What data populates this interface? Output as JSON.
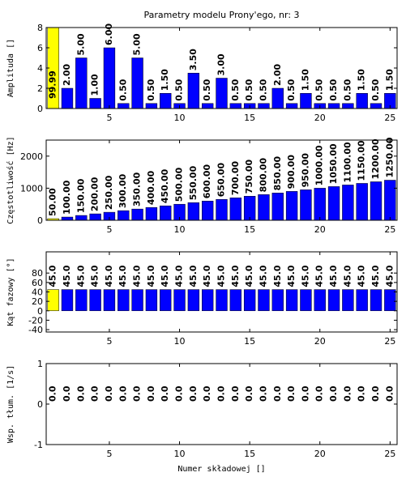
{
  "chart_data": [
    {
      "type": "bar",
      "title": "Parametry modelu Prony'ego, nr: 3",
      "ylabel": "Amplituda []",
      "x": [
        1,
        2,
        3,
        4,
        5,
        6,
        7,
        8,
        9,
        10,
        11,
        12,
        13,
        14,
        15,
        16,
        17,
        18,
        19,
        20,
        21,
        22,
        23,
        24,
        25
      ],
      "values": [
        99.99,
        2,
        5,
        1,
        6,
        0.5,
        5,
        0.5,
        1.5,
        0.5,
        3.5,
        0.5,
        3,
        0.5,
        0.5,
        0.5,
        2,
        0.5,
        1.5,
        0.5,
        0.5,
        0.5,
        1.5,
        0.5,
        1.5
      ],
      "value_labels": [
        "99.99",
        "2.00",
        "5.00",
        "1.00",
        "6.00",
        "0.50",
        "5.00",
        "0.50",
        "1.50",
        "0.50",
        "3.50",
        "0.50",
        "3.00",
        "0.50",
        "0.50",
        "0.50",
        "2.00",
        "0.50",
        "1.50",
        "0.50",
        "0.50",
        "0.50",
        "1.50",
        "0.50",
        "1.50"
      ],
      "colors": [
        "#ffff00",
        "#0000ff",
        "#0000ff",
        "#0000ff",
        "#0000ff",
        "#0000ff",
        "#0000ff",
        "#0000ff",
        "#0000ff",
        "#0000ff",
        "#0000ff",
        "#0000ff",
        "#0000ff",
        "#0000ff",
        "#0000ff",
        "#0000ff",
        "#0000ff",
        "#0000ff",
        "#0000ff",
        "#0000ff",
        "#0000ff",
        "#0000ff",
        "#0000ff",
        "#0000ff",
        "#0000ff"
      ],
      "xlim": [
        0.5,
        25.5
      ],
      "xticks": [
        5,
        10,
        15,
        20,
        25
      ],
      "ylim": [
        0,
        8
      ],
      "yticks": [
        0,
        2,
        4,
        6,
        8
      ]
    },
    {
      "type": "bar",
      "ylabel": "Częstotliwość [Hz]",
      "x": [
        1,
        2,
        3,
        4,
        5,
        6,
        7,
        8,
        9,
        10,
        11,
        12,
        13,
        14,
        15,
        16,
        17,
        18,
        19,
        20,
        21,
        22,
        23,
        24,
        25
      ],
      "values": [
        50,
        100,
        150,
        200,
        250,
        300,
        350,
        400,
        450,
        500,
        550,
        600,
        650,
        700,
        750,
        800,
        850,
        900,
        950,
        1000,
        1050,
        1100,
        1150,
        1200,
        1250
      ],
      "value_labels": [
        "50.00",
        "100.00",
        "150.00",
        "200.00",
        "250.00",
        "300.00",
        "350.00",
        "400.00",
        "450.00",
        "500.00",
        "550.00",
        "600.00",
        "650.00",
        "700.00",
        "750.00",
        "800.00",
        "850.00",
        "900.00",
        "950.00",
        "1000.00",
        "1050.00",
        "1100.00",
        "1150.00",
        "1200.00",
        "1250.00"
      ],
      "colors": [
        "#ffff00",
        "#0000ff",
        "#0000ff",
        "#0000ff",
        "#0000ff",
        "#0000ff",
        "#0000ff",
        "#0000ff",
        "#0000ff",
        "#0000ff",
        "#0000ff",
        "#0000ff",
        "#0000ff",
        "#0000ff",
        "#0000ff",
        "#0000ff",
        "#0000ff",
        "#0000ff",
        "#0000ff",
        "#0000ff",
        "#0000ff",
        "#0000ff",
        "#0000ff",
        "#0000ff",
        "#0000ff"
      ],
      "xlim": [
        0.5,
        25.5
      ],
      "xticks": [
        5,
        10,
        15,
        20,
        25
      ],
      "ylim": [
        0,
        2500
      ],
      "yticks": [
        0,
        1000,
        2000
      ]
    },
    {
      "type": "bar",
      "ylabel": "Kąt fazowy [°]",
      "x": [
        1,
        2,
        3,
        4,
        5,
        6,
        7,
        8,
        9,
        10,
        11,
        12,
        13,
        14,
        15,
        16,
        17,
        18,
        19,
        20,
        21,
        22,
        23,
        24,
        25
      ],
      "values": [
        45,
        45,
        45,
        45,
        45,
        45,
        45,
        45,
        45,
        45,
        45,
        45,
        45,
        45,
        45,
        45,
        45,
        45,
        45,
        45,
        45,
        45,
        45,
        45,
        45
      ],
      "value_labels": [
        "45.0",
        "45.0",
        "45.0",
        "45.0",
        "45.0",
        "45.0",
        "45.0",
        "45.0",
        "45.0",
        "45.0",
        "45.0",
        "45.0",
        "45.0",
        "45.0",
        "45.0",
        "45.0",
        "45.0",
        "45.0",
        "45.0",
        "45.0",
        "45.0",
        "45.0",
        "45.0",
        "45.0",
        "45.0"
      ],
      "colors": [
        "#ffff00",
        "#0000ff",
        "#0000ff",
        "#0000ff",
        "#0000ff",
        "#0000ff",
        "#0000ff",
        "#0000ff",
        "#0000ff",
        "#0000ff",
        "#0000ff",
        "#0000ff",
        "#0000ff",
        "#0000ff",
        "#0000ff",
        "#0000ff",
        "#0000ff",
        "#0000ff",
        "#0000ff",
        "#0000ff",
        "#0000ff",
        "#0000ff",
        "#0000ff",
        "#0000ff",
        "#0000ff"
      ],
      "xlim": [
        0.5,
        25.5
      ],
      "xticks": [
        5,
        10,
        15,
        20,
        25
      ],
      "ylim": [
        -45,
        125
      ],
      "yticks": [
        -40,
        -20,
        0,
        20,
        40,
        60,
        80
      ]
    },
    {
      "type": "bar",
      "ylabel": "Wsp. tłum. [1/s]",
      "xlabel": "Numer składowej []",
      "x": [
        1,
        2,
        3,
        4,
        5,
        6,
        7,
        8,
        9,
        10,
        11,
        12,
        13,
        14,
        15,
        16,
        17,
        18,
        19,
        20,
        21,
        22,
        23,
        24,
        25
      ],
      "values": [
        0,
        0,
        0,
        0,
        0,
        0,
        0,
        0,
        0,
        0,
        0,
        0,
        0,
        0,
        0,
        0,
        0,
        0,
        0,
        0,
        0,
        0,
        0,
        0,
        0
      ],
      "value_labels": [
        "0.0",
        "0.0",
        "0.0",
        "0.0",
        "0.0",
        "0.0",
        "0.0",
        "0.0",
        "0.0",
        "0.0",
        "0.0",
        "0.0",
        "0.0",
        "0.0",
        "0.0",
        "0.0",
        "0.0",
        "0.0",
        "0.0",
        "0.0",
        "0.0",
        "0.0",
        "0.0",
        "0.0",
        "0.0"
      ],
      "colors": [
        "#ffff00",
        "#0000ff",
        "#0000ff",
        "#0000ff",
        "#0000ff",
        "#0000ff",
        "#0000ff",
        "#0000ff",
        "#0000ff",
        "#0000ff",
        "#0000ff",
        "#0000ff",
        "#0000ff",
        "#0000ff",
        "#0000ff",
        "#0000ff",
        "#0000ff",
        "#0000ff",
        "#0000ff",
        "#0000ff",
        "#0000ff",
        "#0000ff",
        "#0000ff",
        "#0000ff",
        "#0000ff"
      ],
      "xlim": [
        0.5,
        25.5
      ],
      "xticks": [
        5,
        10,
        15,
        20,
        25
      ],
      "ylim": [
        -1,
        1
      ],
      "yticks": [
        -1,
        0,
        1
      ]
    }
  ]
}
